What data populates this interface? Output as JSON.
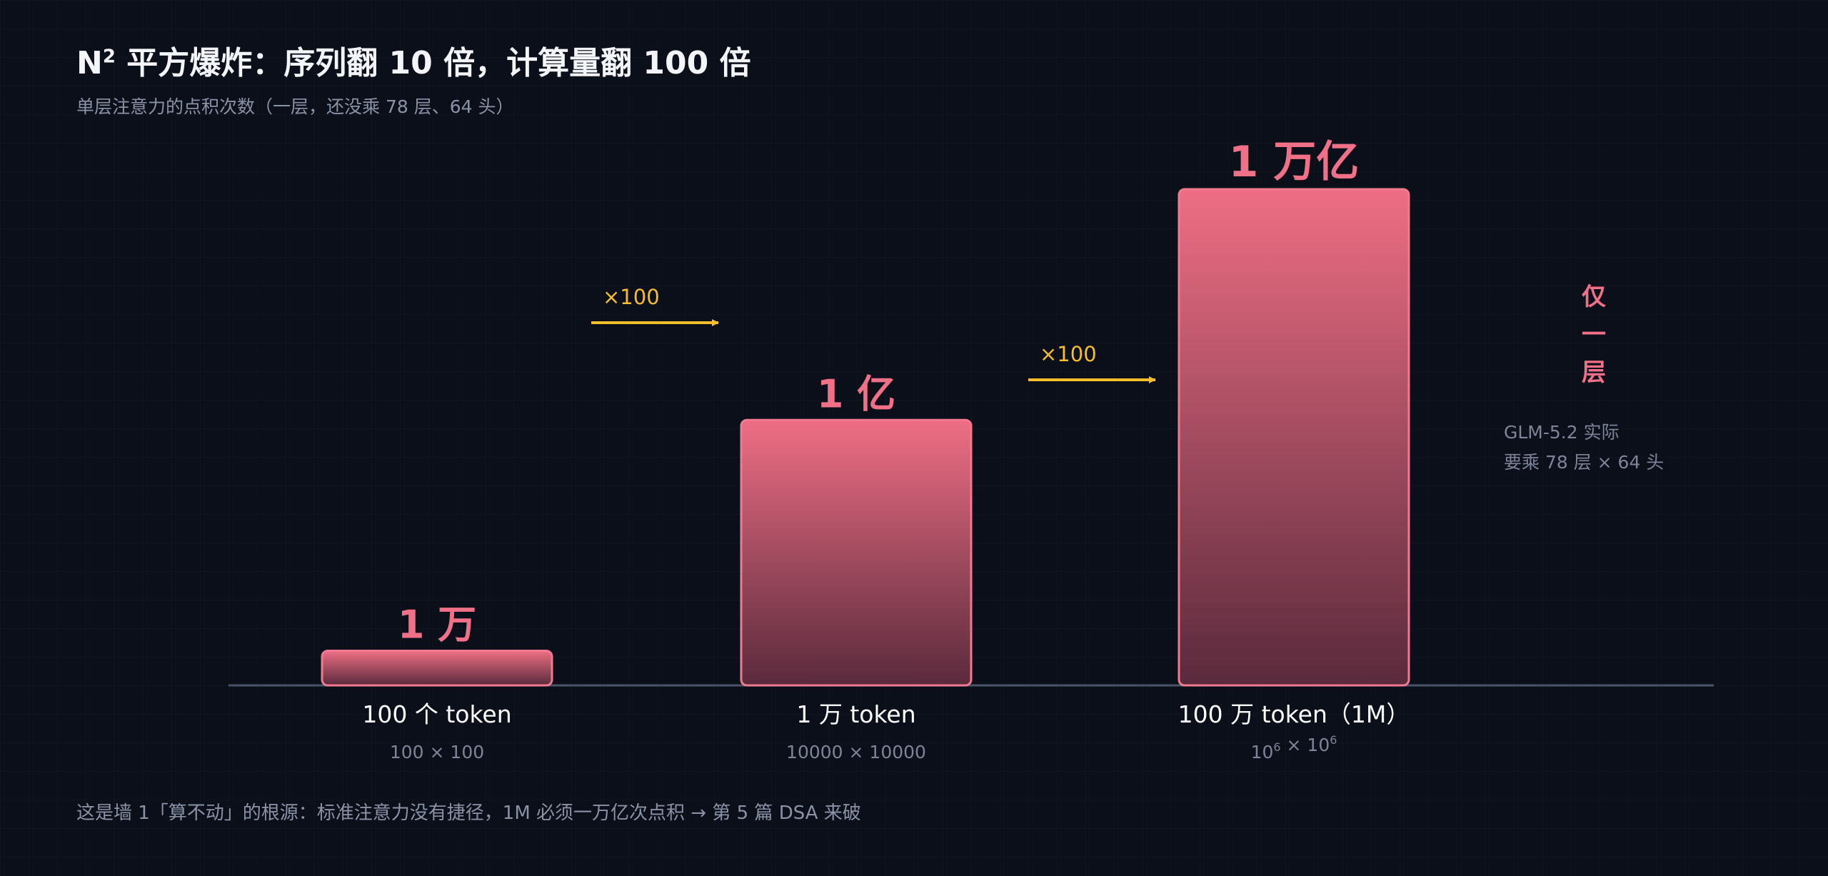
{
  "title_main": "N",
  "title_sup": "2",
  "title_rest": " 平方爆炸：序列翻 10 倍，计算量翻 100 倍",
  "subtitle": "单层注意力的点积次数（一层，还没乘 78 层、64 头）",
  "side_label": [
    "仅",
    "一",
    "层"
  ],
  "side_note": [
    "GLM-5.2 实际",
    "要乘 78 层 × 64 头"
  ],
  "footnote": "这是墙 1「算不动」的根源：标准注意力没有捷径，1M 必须一万亿次点积 → 第 5 篇 DSA 来破",
  "colors": {
    "bar_top": "#ee6e84",
    "bar_bottom": "#5a2a3c",
    "bar_stroke": "#f07a90",
    "value_label": "#f07088",
    "arrow": "#f5bd2b",
    "baseline": "#4b5466",
    "category_label": "#ffffff",
    "sub_label": "#7c8598"
  },
  "chart_data": {
    "type": "bar",
    "scale": "log",
    "categories": [
      "100 个 token",
      "1 万 token",
      "100 万 token（1M）"
    ],
    "category_sublabels": [
      {
        "text": "100 × 100"
      },
      {
        "text": "10000 × 10000"
      },
      {
        "base": "10",
        "exp": "6",
        "mid": " × ",
        "base2": "10",
        "exp2": "6"
      }
    ],
    "values": [
      10000,
      100000000,
      1000000000000
    ],
    "value_labels": [
      "1 万",
      "1 亿",
      "1 万亿"
    ],
    "transitions": [
      {
        "from": 0,
        "to": 1,
        "label": "×100"
      },
      {
        "from": 1,
        "to": 2,
        "label": "×100"
      }
    ]
  }
}
